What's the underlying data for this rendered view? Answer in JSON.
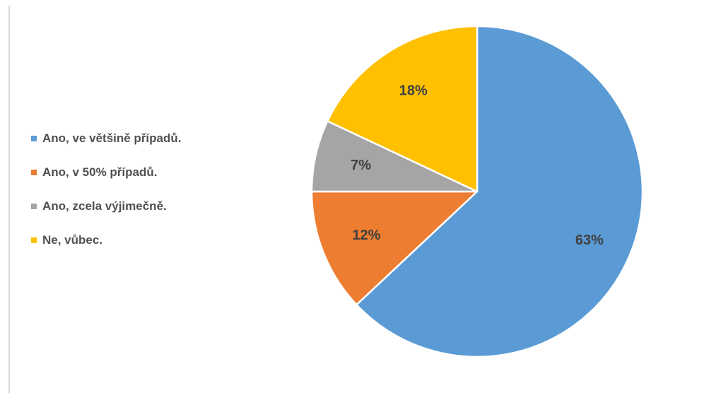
{
  "chart_data": {
    "type": "pie",
    "title": "",
    "slices": [
      {
        "label": "Ano, ve většině případů.",
        "value": 63,
        "display": "63%",
        "color": "#5B9BD5"
      },
      {
        "label": "Ano, v 50% případů.",
        "value": 12,
        "display": "12%",
        "color": "#ED7D31"
      },
      {
        "label": "Ano, zcela výjimečně.",
        "value": 7,
        "display": "7%",
        "color": "#A5A5A5"
      },
      {
        "label": "Ne, vůbec.",
        "value": 18,
        "display": "18%",
        "color": "#FFC000"
      }
    ],
    "legend_position": "left"
  }
}
